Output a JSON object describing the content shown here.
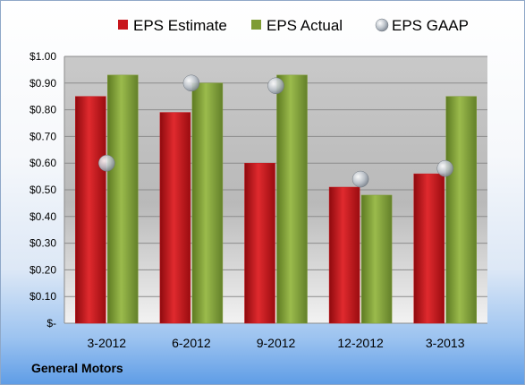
{
  "company_label": "General Motors",
  "colors": {
    "estimate": "#c8151b",
    "actual": "#7f9c34",
    "gaap": "#b9c0c8"
  },
  "chart_data": {
    "type": "bar",
    "categories": [
      "3-2012",
      "6-2012",
      "9-2012",
      "12-2012",
      "3-2013"
    ],
    "series": [
      {
        "name": "EPS Estimate",
        "kind": "bar",
        "values": [
          0.85,
          0.79,
          0.6,
          0.51,
          0.56
        ]
      },
      {
        "name": "EPS Actual",
        "kind": "bar",
        "values": [
          0.93,
          0.9,
          0.93,
          0.48,
          0.85
        ]
      },
      {
        "name": "EPS GAAP",
        "kind": "scatter",
        "values": [
          0.6,
          0.9,
          0.89,
          0.54,
          0.58
        ]
      }
    ],
    "ylim": [
      0,
      1.0
    ],
    "yticks": [
      0,
      0.1,
      0.2,
      0.3,
      0.4,
      0.5,
      0.6,
      0.7,
      0.8,
      0.9,
      1.0
    ],
    "ytick_labels": [
      "$-",
      "$0.10",
      "$0.20",
      "$0.30",
      "$0.40",
      "$0.50",
      "$0.60",
      "$0.70",
      "$0.80",
      "$0.90",
      "$1.00"
    ],
    "grid": true,
    "legend": "top"
  }
}
